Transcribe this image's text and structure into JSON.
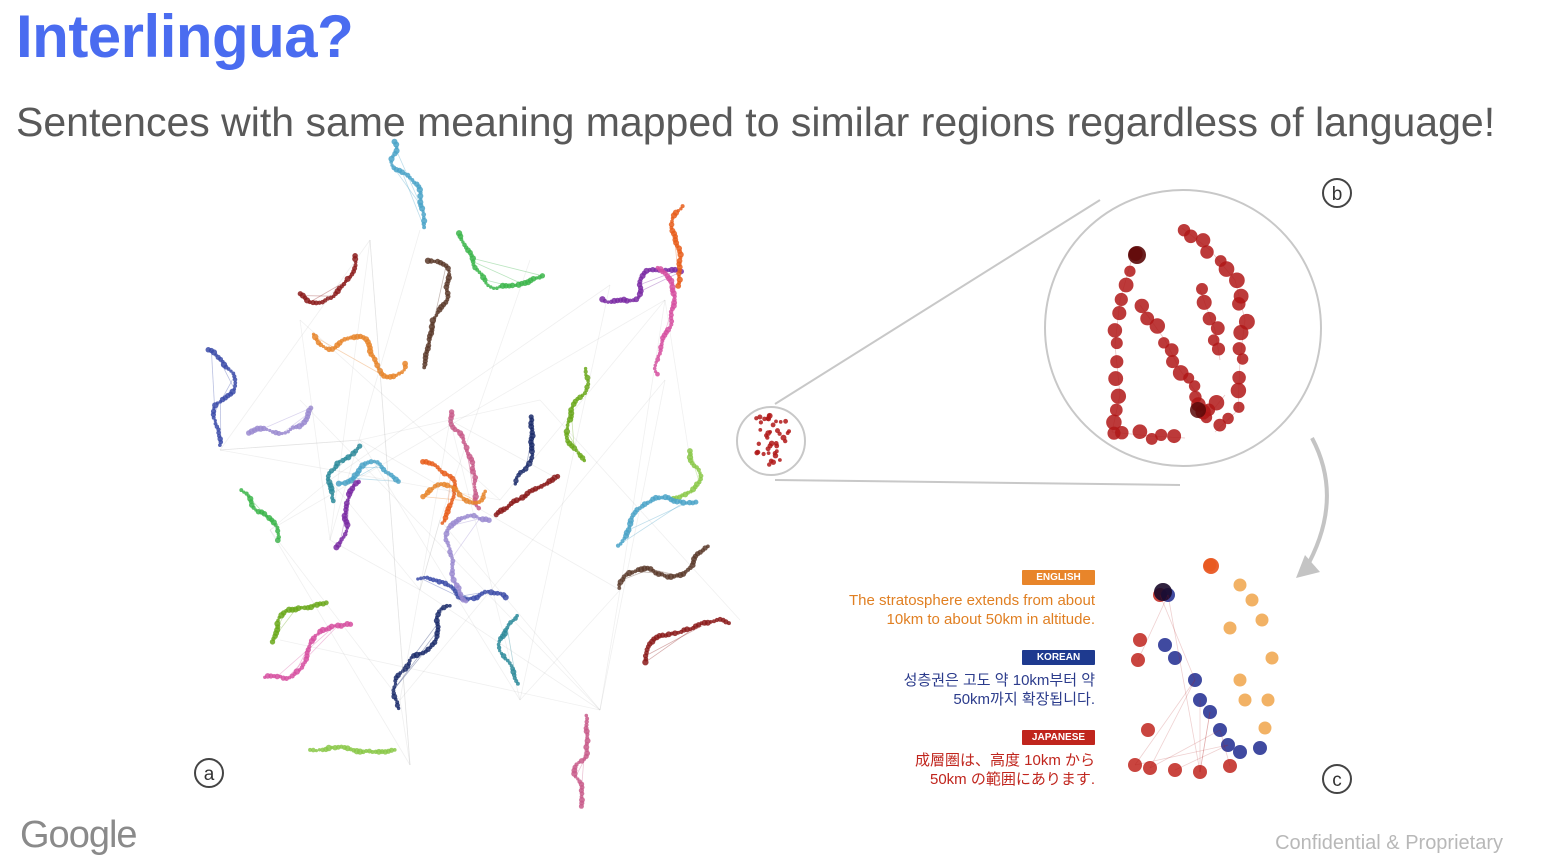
{
  "slide": {
    "title": "Interlingua?",
    "subtitle": "Sentences with same meaning mapped to similar regions regardless of language!"
  },
  "panels": {
    "a": "a",
    "b": "b",
    "c": "c"
  },
  "legend": {
    "english": {
      "badge": "ENGLISH",
      "line1": "The stratosphere extends from about",
      "line2": "10km to about 50km in altitude.",
      "color": "#e8852a"
    },
    "korean": {
      "badge": "KOREAN",
      "line1": "성층권은 고도 약 10km부터 약",
      "line2": "50km까지 확장됩니다.",
      "color": "#1e3a8f"
    },
    "japanese": {
      "badge": "JAPANESE",
      "line1": "成層圏は、高度 10km から",
      "line2": "50km の範囲にあります.",
      "color": "#c0251d"
    }
  },
  "footer": {
    "logo": "Google",
    "confidential": "Confidential & Proprietary"
  },
  "colors": {
    "title": "#4a6cf0",
    "cluster_red": "#b01818"
  }
}
